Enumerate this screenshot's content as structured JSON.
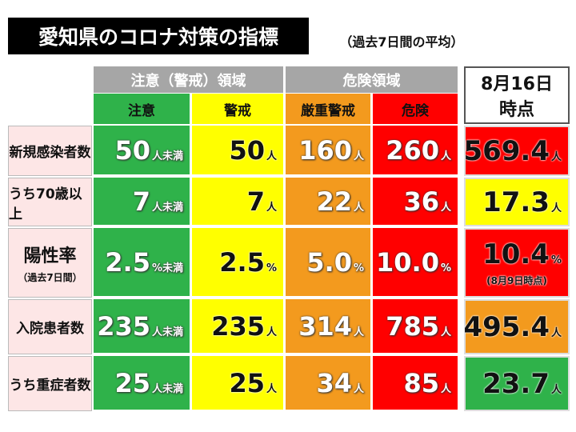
{
  "header": {
    "title": "愛知県のコロナ対策の指標",
    "subtitle": "（過去7日間の平均）"
  },
  "table": {
    "group_headers": [
      "注意（警戒）領域",
      "危険領域"
    ],
    "current_header": [
      "8月16日",
      "時点"
    ],
    "columns": [
      "注意",
      "警戒",
      "厳重警戒",
      "危険"
    ],
    "rows": [
      {
        "label": "新規感染者数",
        "cells": [
          {
            "value": "50",
            "unit": "人未満"
          },
          {
            "value": "50",
            "unit": "人"
          },
          {
            "value": "160",
            "unit": "人"
          },
          {
            "value": "260",
            "unit": "人"
          }
        ],
        "current": {
          "value": "569.4",
          "unit": "人"
        }
      },
      {
        "label": "うち70歳以上",
        "cells": [
          {
            "value": "7",
            "unit": "人未満"
          },
          {
            "value": "7",
            "unit": "人"
          },
          {
            "value": "22",
            "unit": "人"
          },
          {
            "value": "36",
            "unit": "人"
          }
        ],
        "current": {
          "value": "17.3",
          "unit": "人"
        }
      },
      {
        "label": "陽性率",
        "sublabel": "（過去7日間）",
        "cells": [
          {
            "value": "2.5",
            "unit": "%未満"
          },
          {
            "value": "2.5",
            "unit": "%"
          },
          {
            "value": "5.0",
            "unit": "%"
          },
          {
            "value": "10.0",
            "unit": "%"
          }
        ],
        "current": {
          "value": "10.4",
          "unit": "%",
          "note": "(8月9日時点)"
        }
      },
      {
        "label": "入院患者数",
        "cells": [
          {
            "value": "235",
            "unit": "人未満"
          },
          {
            "value": "235",
            "unit": "人"
          },
          {
            "value": "314",
            "unit": "人"
          },
          {
            "value": "785",
            "unit": "人"
          }
        ],
        "current": {
          "value": "495.4",
          "unit": "人"
        }
      },
      {
        "label": "うち重症者数",
        "cells": [
          {
            "value": "25",
            "unit": "人未満"
          },
          {
            "value": "25",
            "unit": "人"
          },
          {
            "value": "34",
            "unit": "人"
          },
          {
            "value": "85",
            "unit": "人"
          }
        ],
        "current": {
          "value": "23.7",
          "unit": "人"
        }
      }
    ]
  }
}
